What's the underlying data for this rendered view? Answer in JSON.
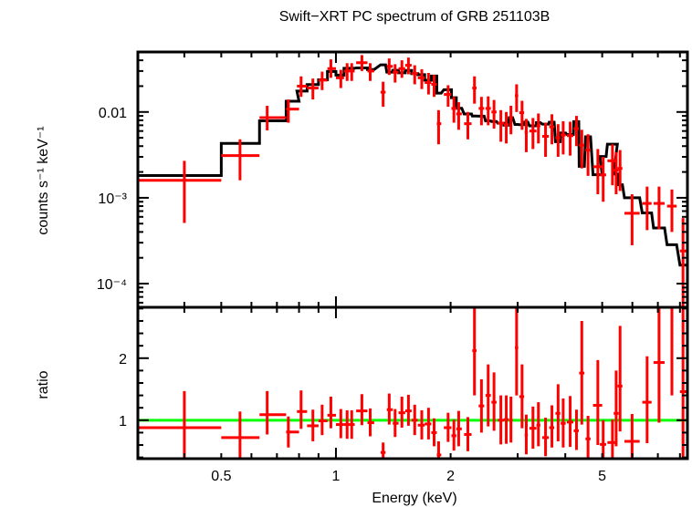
{
  "chart_data": {
    "type": "scatter",
    "title": "Swift−XRT PC spectrum of GRB 251103B",
    "xlabel": "Energy (keV)",
    "xscale": "log",
    "xlim": [
      0.302,
      8.37
    ],
    "xticks": [
      0.5,
      1,
      2,
      5
    ],
    "xtick_labels": [
      "0.5",
      "1",
      "2",
      "5"
    ],
    "panels": [
      {
        "name": "spectrum",
        "ylabel": "counts s⁻¹ keV⁻¹",
        "yscale": "log",
        "ylim": [
          5.3e-05,
          0.05
        ],
        "yticks": [
          0.0001,
          0.001,
          0.01
        ],
        "ytick_labels": [
          "10⁻⁴",
          "10⁻³",
          "0.01"
        ]
      },
      {
        "name": "ratio",
        "ylabel": "ratio",
        "yscale": "linear",
        "ylim": [
          0.38,
          2.82
        ],
        "yticks": [
          1,
          2
        ],
        "ytick_labels": [
          "1",
          "2"
        ],
        "reference_line": 1
      }
    ],
    "colors": {
      "data": "#ff0000",
      "model": "#000000",
      "reference": "#00ff00"
    },
    "series": [
      {
        "name": "data",
        "columns": [
          "energy",
          "e_lo",
          "e_hi",
          "rate",
          "rate_lo",
          "rate_hi",
          "ratio",
          "ratio_lo",
          "ratio_hi"
        ],
        "points": [
          [
            0.4,
            0.302,
            0.5,
            0.0016,
            0.00051,
            0.0027,
            0.88,
            0.37,
            1.47
          ],
          [
            0.56,
            0.5,
            0.63,
            0.0031,
            0.0016,
            0.0048,
            0.72,
            0.38,
            1.14
          ],
          [
            0.66,
            0.63,
            0.74,
            0.0086,
            0.0061,
            0.0118,
            1.09,
            0.77,
            1.47
          ],
          [
            0.75,
            0.74,
            0.8,
            0.0108,
            0.0075,
            0.014,
            0.81,
            0.56,
            1.06
          ],
          [
            0.81,
            0.79,
            0.84,
            0.02,
            0.015,
            0.026,
            1.14,
            0.86,
            1.48
          ],
          [
            0.87,
            0.84,
            0.9,
            0.019,
            0.014,
            0.0245,
            0.91,
            0.66,
            1.17
          ],
          [
            0.92,
            0.9,
            0.95,
            0.0235,
            0.018,
            0.0295,
            0.99,
            0.76,
            1.25
          ],
          [
            0.97,
            0.95,
            1.0,
            0.032,
            0.025,
            0.041,
            1.08,
            0.87,
            1.38
          ],
          [
            1.03,
            1.0,
            1.05,
            0.025,
            0.019,
            0.031,
            0.93,
            0.71,
            1.18
          ],
          [
            1.07,
            1.05,
            1.09,
            0.03,
            0.023,
            0.037,
            0.93,
            0.7,
            1.16
          ],
          [
            1.1,
            1.09,
            1.12,
            0.03,
            0.023,
            0.037,
            0.93,
            0.7,
            1.16
          ],
          [
            1.17,
            1.13,
            1.21,
            0.0375,
            0.03,
            0.046,
            1.15,
            0.92,
            1.42
          ],
          [
            1.23,
            1.21,
            1.26,
            0.03,
            0.023,
            0.037,
            0.96,
            0.74,
            1.19
          ],
          [
            1.33,
            1.31,
            1.35,
            0.017,
            0.0115,
            0.0225,
            0.48,
            0.38,
            0.64
          ],
          [
            1.38,
            1.36,
            1.41,
            0.034,
            0.027,
            0.042,
            1.17,
            0.93,
            1.43
          ],
          [
            1.43,
            1.41,
            1.46,
            0.029,
            0.022,
            0.036,
            0.95,
            0.73,
            1.18
          ],
          [
            1.49,
            1.46,
            1.52,
            0.032,
            0.025,
            0.04,
            1.12,
            0.88,
            1.38
          ],
          [
            1.55,
            1.52,
            1.58,
            0.035,
            0.0275,
            0.043,
            1.15,
            0.91,
            1.41
          ],
          [
            1.61,
            1.58,
            1.64,
            0.028,
            0.021,
            0.035,
            1.0,
            0.76,
            1.25
          ],
          [
            1.68,
            1.64,
            1.71,
            0.025,
            0.0185,
            0.0315,
            0.92,
            0.69,
            1.16
          ],
          [
            1.75,
            1.71,
            1.78,
            0.022,
            0.016,
            0.0285,
            0.94,
            0.69,
            1.2
          ],
          [
            1.81,
            1.78,
            1.84,
            0.021,
            0.015,
            0.027,
            0.8,
            0.58,
            1.03
          ],
          [
            1.86,
            1.84,
            1.89,
            0.0073,
            0.0042,
            0.0105,
            0.44,
            0.38,
            0.66
          ],
          [
            1.97,
            1.92,
            2.01,
            0.016,
            0.0115,
            0.0205,
            0.88,
            0.65,
            1.12
          ],
          [
            2.04,
            2.01,
            2.07,
            0.011,
            0.0075,
            0.015,
            0.75,
            0.51,
            1.01
          ],
          [
            2.1,
            2.07,
            2.14,
            0.0095,
            0.0062,
            0.013,
            0.86,
            0.58,
            1.15
          ],
          [
            2.22,
            2.17,
            2.27,
            0.0073,
            0.0048,
            0.01,
            0.77,
            0.5,
            1.05
          ],
          [
            2.31,
            2.28,
            2.34,
            0.019,
            0.0125,
            0.026,
            2.12,
            1.4,
            2.83
          ],
          [
            2.41,
            2.37,
            2.45,
            0.011,
            0.007,
            0.015,
            1.23,
            0.8,
            1.66
          ],
          [
            2.51,
            2.47,
            2.55,
            0.011,
            0.007,
            0.0152,
            1.4,
            0.9,
            1.9
          ],
          [
            2.6,
            2.56,
            2.64,
            0.01,
            0.0064,
            0.0138,
            1.29,
            0.83,
            1.77
          ],
          [
            2.71,
            2.66,
            2.76,
            0.0074,
            0.0045,
            0.0105,
            1.0,
            0.61,
            1.4
          ],
          [
            2.8,
            2.76,
            2.84,
            0.0071,
            0.0043,
            0.01,
            1.01,
            0.62,
            1.4
          ],
          [
            2.88,
            2.85,
            2.91,
            0.0086,
            0.0055,
            0.0118,
            1.0,
            0.64,
            1.38
          ],
          [
            2.98,
            2.95,
            3.01,
            0.0155,
            0.01,
            0.021,
            2.17,
            1.4,
            2.95
          ],
          [
            3.08,
            3.03,
            3.12,
            0.0098,
            0.0062,
            0.0135,
            1.38,
            0.87,
            1.9
          ],
          [
            3.16,
            3.13,
            3.19,
            0.0058,
            0.0034,
            0.0083,
            0.76,
            0.45,
            1.09
          ],
          [
            3.29,
            3.22,
            3.36,
            0.006,
            0.0037,
            0.0085,
            0.87,
            0.54,
            1.22
          ],
          [
            3.4,
            3.36,
            3.44,
            0.0069,
            0.0043,
            0.0096,
            0.92,
            0.58,
            1.29
          ],
          [
            3.55,
            3.48,
            3.62,
            0.0052,
            0.003,
            0.0075,
            0.72,
            0.42,
            1.04
          ],
          [
            3.69,
            3.63,
            3.74,
            0.0067,
            0.0042,
            0.0094,
            0.88,
            0.56,
            1.24
          ],
          [
            3.83,
            3.77,
            3.88,
            0.005,
            0.003,
            0.0072,
            1.11,
            0.66,
            1.58
          ],
          [
            3.95,
            3.89,
            4.01,
            0.0054,
            0.0032,
            0.0078,
            0.95,
            0.56,
            1.35
          ],
          [
            4.12,
            4.04,
            4.2,
            0.0053,
            0.0031,
            0.0077,
            0.97,
            0.57,
            1.39
          ],
          [
            4.28,
            4.21,
            4.34,
            0.0064,
            0.004,
            0.009,
            0.83,
            0.52,
            1.17
          ],
          [
            4.42,
            4.35,
            4.49,
            0.0041,
            0.0022,
            0.0062,
            1.76,
            0.93,
            2.6
          ],
          [
            4.59,
            4.52,
            4.66,
            0.0036,
            0.0018,
            0.0055,
            0.7,
            0.36,
            1.07
          ],
          [
            4.87,
            4.73,
            5.0,
            0.0023,
            0.0011,
            0.0037,
            1.24,
            0.6,
            1.97
          ],
          [
            5.03,
            4.93,
            5.12,
            0.00185,
            0.0009,
            0.003,
            0.61,
            0.3,
            1.0
          ],
          [
            5.32,
            5.16,
            5.48,
            0.0027,
            0.0014,
            0.0042,
            0.64,
            0.34,
            1.01
          ],
          [
            5.44,
            5.36,
            5.52,
            0.0021,
            0.0011,
            0.0034,
            1.11,
            0.58,
            1.8
          ],
          [
            5.57,
            5.49,
            5.65,
            0.0022,
            0.0012,
            0.0036,
            1.55,
            0.82,
            2.52
          ],
          [
            5.99,
            5.72,
            6.27,
            0.00066,
            0.00028,
            0.0011,
            0.66,
            0.28,
            1.1
          ],
          [
            6.56,
            6.37,
            6.74,
            0.00086,
            0.00042,
            0.00135,
            1.29,
            0.63,
            2.03
          ],
          [
            7.05,
            6.82,
            7.29,
            0.00086,
            0.00043,
            0.00135,
            1.93,
            0.96,
            2.95
          ],
          [
            7.62,
            7.4,
            7.84,
            0.0008,
            0.0004,
            0.00125,
            2.82,
            1.4,
            4.2
          ],
          [
            8.15,
            8.0,
            8.37,
            0.00024,
            1e-05,
            0.00058,
            1.46,
            0.05,
            3.4
          ]
        ]
      }
    ]
  }
}
